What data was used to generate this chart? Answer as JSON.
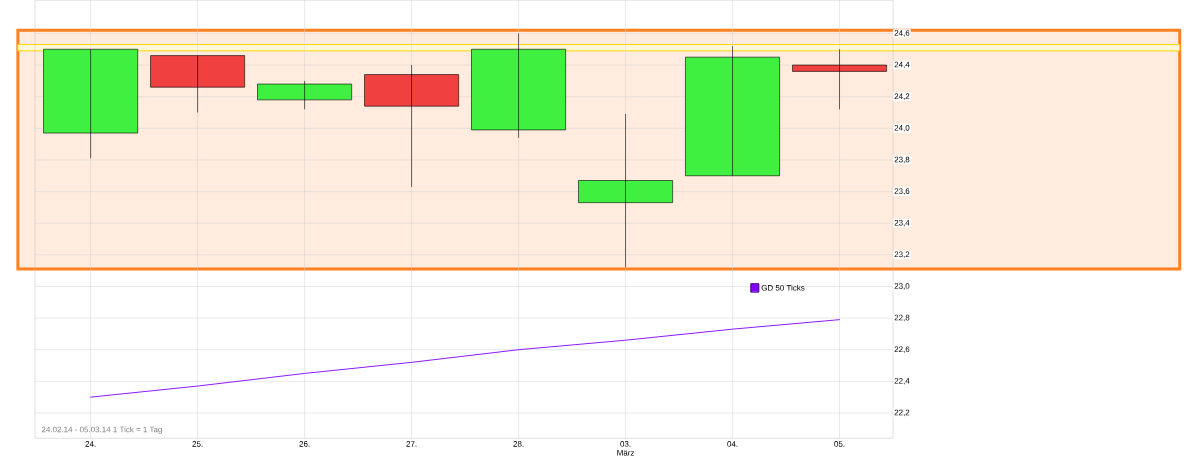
{
  "chart_data": {
    "type": "candlestick",
    "categories": [
      "24.",
      "25.",
      "26.",
      "27.",
      "28.",
      "03.",
      "04.",
      "05."
    ],
    "ohlc": [
      [
        23.97,
        24.5,
        23.81,
        24.5
      ],
      [
        24.46,
        24.46,
        24.1,
        24.26
      ],
      [
        24.18,
        24.3,
        24.12,
        24.28
      ],
      [
        24.34,
        24.4,
        23.63,
        24.14
      ],
      [
        23.99,
        24.6,
        23.94,
        24.5
      ],
      [
        23.53,
        24.09,
        23.12,
        23.67
      ],
      [
        23.7,
        24.52,
        23.7,
        24.45
      ],
      [
        24.4,
        24.5,
        24.12,
        24.36
      ]
    ],
    "colors": [
      "#40f040",
      "#f04040",
      "#40f040",
      "#f04040",
      "#40f040",
      "#40f040",
      "#40f040",
      "#f04040"
    ],
    "series": [
      {
        "type": "line",
        "name": "GD 50 Ticks",
        "color": "#8000ff",
        "values": [
          22.3,
          22.37,
          22.45,
          22.52,
          22.6,
          22.66,
          22.73,
          22.79
        ]
      }
    ],
    "xlabel": "März",
    "ylim": [
      22.04,
      24.81
    ],
    "yticks": [
      {
        "value": 22.2,
        "label": "22,2"
      },
      {
        "value": 22.4,
        "label": "22,4"
      },
      {
        "value": 22.6,
        "label": "22,6"
      },
      {
        "value": 22.8,
        "label": "22,8"
      },
      {
        "value": 23.0,
        "label": "23,0"
      },
      {
        "value": 23.2,
        "label": "23,2"
      },
      {
        "value": 23.4,
        "label": "23,4"
      },
      {
        "value": 23.6,
        "label": "23,6"
      },
      {
        "value": 23.8,
        "label": "23,8"
      },
      {
        "value": 24.0,
        "label": "24,0"
      },
      {
        "value": 24.2,
        "label": "24,2"
      },
      {
        "value": 24.4,
        "label": "24,4"
      },
      {
        "value": 24.6,
        "label": "24,6"
      }
    ],
    "bands": [
      {
        "axis": "y",
        "from": 23.11,
        "to": 24.62,
        "color": "#ff8020"
      },
      {
        "axis": "y",
        "from": 24.49,
        "to": 24.53,
        "color": "#ffd700"
      }
    ],
    "annotations": [
      "24.02.14 - 05.03.14   1 Tick = 1 Tag"
    ],
    "grid": true,
    "legend": "right"
  }
}
